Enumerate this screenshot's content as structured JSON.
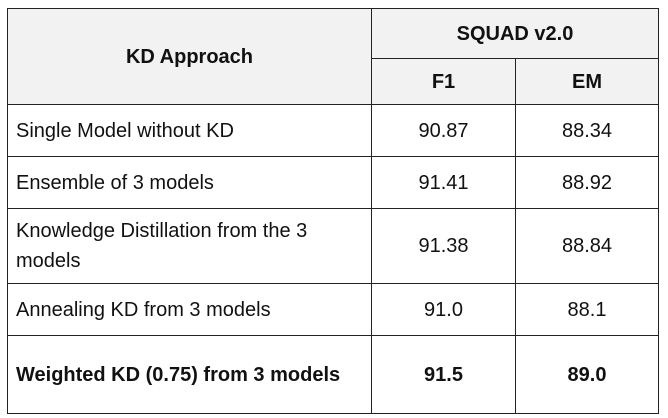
{
  "table": {
    "header": {
      "approach": "KD Approach",
      "dataset": "SQUAD v2.0",
      "metrics": [
        "F1",
        "EM"
      ]
    },
    "rows": [
      {
        "approach": "Single Model without KD",
        "f1": "90.87",
        "em": "88.34",
        "bold": false
      },
      {
        "approach": "Ensemble of 3 models",
        "f1": "91.41",
        "em": "88.92",
        "bold": false
      },
      {
        "approach": "Knowledge Distillation from the 3 models",
        "f1": "91.38",
        "em": "88.84",
        "bold": false
      },
      {
        "approach": "Annealing KD from 3 models",
        "f1": "91.0",
        "em": "88.1",
        "bold": false
      },
      {
        "approach": "Weighted KD (0.75) from 3 models",
        "f1": "91.5",
        "em": "89.0",
        "bold": true
      }
    ]
  }
}
